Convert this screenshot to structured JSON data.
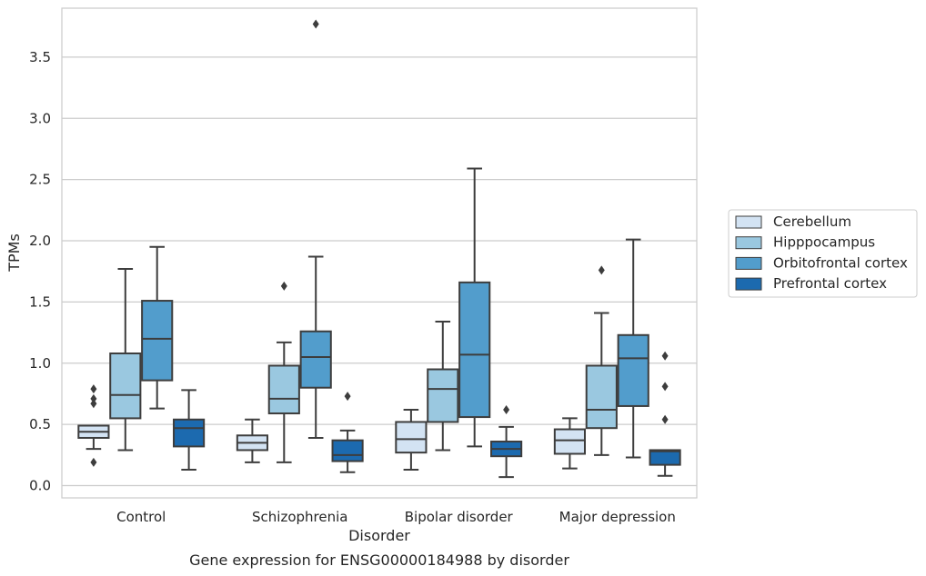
{
  "chart_data": {
    "type": "box",
    "title": "",
    "caption": "Gene expression for ENSG00000184988 by disorder",
    "xlabel": "Disorder",
    "ylabel": "TPMs",
    "ylim": [
      -0.1,
      3.9
    ],
    "yticks": [
      "0.0",
      "0.5",
      "1.0",
      "1.5",
      "2.0",
      "2.5",
      "3.0",
      "3.5"
    ],
    "grid": "horizontal",
    "legend_position": "right",
    "categories": [
      "Control",
      "Schizophrenia",
      "Bipolar disorder",
      "Major depression"
    ],
    "series": [
      {
        "name": "Cerebellum",
        "color": "#d3e3f3",
        "boxes": [
          {
            "whislo": 0.3,
            "q1": 0.39,
            "med": 0.44,
            "q3": 0.49,
            "whishi": 0.49,
            "fliers": [
              0.79,
              0.71,
              0.67,
              0.19
            ]
          },
          {
            "whislo": 0.19,
            "q1": 0.29,
            "med": 0.35,
            "q3": 0.41,
            "whishi": 0.54,
            "fliers": []
          },
          {
            "whislo": 0.13,
            "q1": 0.27,
            "med": 0.38,
            "q3": 0.52,
            "whishi": 0.62,
            "fliers": []
          },
          {
            "whislo": 0.14,
            "q1": 0.26,
            "med": 0.37,
            "q3": 0.46,
            "whishi": 0.55,
            "fliers": []
          }
        ]
      },
      {
        "name": "Hipppocampus",
        "color": "#9ac8e0",
        "boxes": [
          {
            "whislo": 0.29,
            "q1": 0.55,
            "med": 0.74,
            "q3": 1.08,
            "whishi": 1.77,
            "fliers": []
          },
          {
            "whislo": 0.19,
            "q1": 0.59,
            "med": 0.71,
            "q3": 0.98,
            "whishi": 1.17,
            "fliers": [
              1.63
            ]
          },
          {
            "whislo": 0.29,
            "q1": 0.52,
            "med": 0.79,
            "q3": 0.95,
            "whishi": 1.34,
            "fliers": []
          },
          {
            "whislo": 0.25,
            "q1": 0.47,
            "med": 0.62,
            "q3": 0.98,
            "whishi": 1.41,
            "fliers": [
              1.76
            ]
          }
        ]
      },
      {
        "name": "Orbitofrontal cortex",
        "color": "#529dcc",
        "boxes": [
          {
            "whislo": 0.63,
            "q1": 0.86,
            "med": 1.2,
            "q3": 1.51,
            "whishi": 1.95,
            "fliers": []
          },
          {
            "whislo": 0.39,
            "q1": 0.8,
            "med": 1.05,
            "q3": 1.26,
            "whishi": 1.87,
            "fliers": [
              3.77
            ]
          },
          {
            "whislo": 0.32,
            "q1": 0.56,
            "med": 1.07,
            "q3": 1.66,
            "whishi": 2.59,
            "fliers": []
          },
          {
            "whislo": 0.23,
            "q1": 0.65,
            "med": 1.04,
            "q3": 1.23,
            "whishi": 2.01,
            "fliers": []
          }
        ]
      },
      {
        "name": "Prefrontal cortex",
        "color": "#1c6aaf",
        "boxes": [
          {
            "whislo": 0.13,
            "q1": 0.32,
            "med": 0.47,
            "q3": 0.54,
            "whishi": 0.78,
            "fliers": []
          },
          {
            "whislo": 0.11,
            "q1": 0.2,
            "med": 0.25,
            "q3": 0.37,
            "whishi": 0.45,
            "fliers": [
              0.73
            ]
          },
          {
            "whislo": 0.07,
            "q1": 0.24,
            "med": 0.3,
            "q3": 0.36,
            "whishi": 0.48,
            "fliers": [
              0.62
            ]
          },
          {
            "whislo": 0.08,
            "q1": 0.17,
            "med": 0.28,
            "q3": 0.29,
            "whishi": 0.29,
            "fliers": [
              1.06,
              0.81,
              0.54
            ]
          }
        ]
      }
    ]
  }
}
